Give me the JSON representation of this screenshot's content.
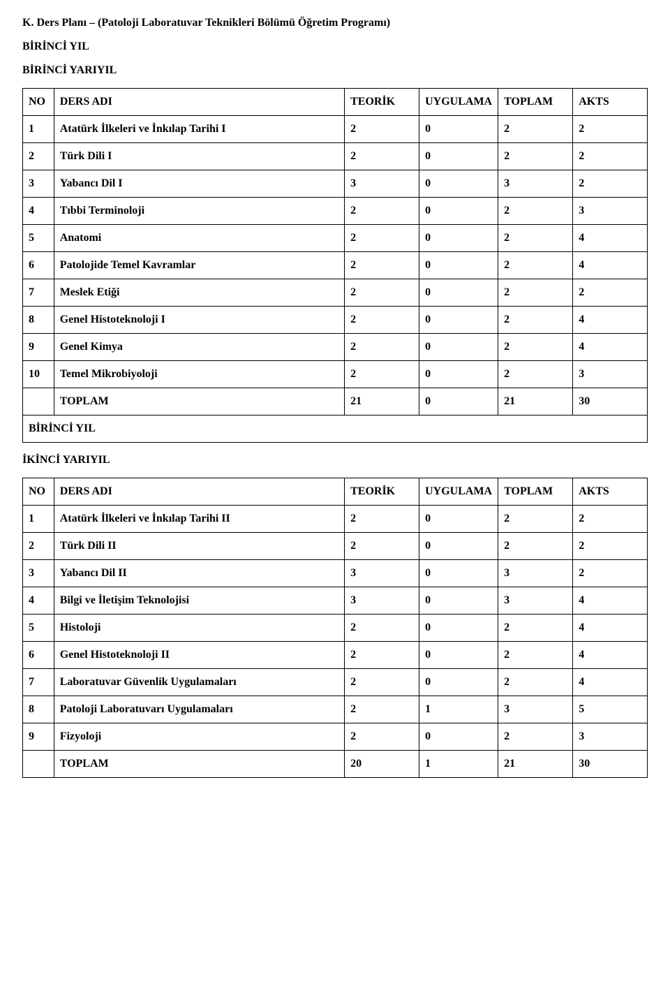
{
  "page_title": "K. Ders Planı – (Patoloji Laboratuvar Teknikleri Bölümü Öğretim Programı)",
  "year1_heading": "BİRİNCİ YIL",
  "sem1_heading": "BİRİNCİ YARIYIL",
  "sem2_heading": "İKİNCİ YARIYIL",
  "columns": {
    "no": "NO",
    "ders_adi": "DERS ADI",
    "teorik": "TEORİK",
    "uygulama": "UYGULAMA",
    "toplam": "TOPLAM",
    "akts": "AKTS"
  },
  "sem1": {
    "rows": [
      {
        "no": "1",
        "name": "Atatürk İlkeleri ve İnkılap Tarihi I",
        "teorik": "2",
        "uygulama": "0",
        "toplam": "2",
        "akts": "2"
      },
      {
        "no": "2",
        "name": "Türk Dili I",
        "teorik": "2",
        "uygulama": "0",
        "toplam": "2",
        "akts": "2"
      },
      {
        "no": "3",
        "name": "Yabancı Dil I",
        "teorik": "3",
        "uygulama": "0",
        "toplam": "3",
        "akts": "2"
      },
      {
        "no": "4",
        "name": "Tıbbi Terminoloji",
        "teorik": "2",
        "uygulama": "0",
        "toplam": "2",
        "akts": "3"
      },
      {
        "no": "5",
        "name": "Anatomi",
        "teorik": "2",
        "uygulama": "0",
        "toplam": "2",
        "akts": "4"
      },
      {
        "no": "6",
        "name": "Patolojide Temel Kavramlar",
        "teorik": "2",
        "uygulama": "0",
        "toplam": "2",
        "akts": "4"
      },
      {
        "no": "7",
        "name": "Meslek Etiği",
        "teorik": "2",
        "uygulama": "0",
        "toplam": "2",
        "akts": "2"
      },
      {
        "no": "8",
        "name": "Genel Histoteknoloji I",
        "teorik": "2",
        "uygulama": "0",
        "toplam": "2",
        "akts": "4"
      },
      {
        "no": "9",
        "name": "Genel Kimya",
        "teorik": "2",
        "uygulama": "0",
        "toplam": "2",
        "akts": "4"
      },
      {
        "no": "10",
        "name": "Temel Mikrobiyoloji",
        "teorik": "2",
        "uygulama": "0",
        "toplam": "2",
        "akts": "3"
      }
    ],
    "total": {
      "label": "TOPLAM",
      "teorik": "21",
      "uygulama": "0",
      "toplam": "21",
      "akts": "30"
    },
    "after_label": "BİRİNCİ YIL"
  },
  "sem2": {
    "rows": [
      {
        "no": "1",
        "name": "Atatürk İlkeleri ve İnkılap Tarihi II",
        "teorik": "2",
        "uygulama": "0",
        "toplam": "2",
        "akts": "2"
      },
      {
        "no": "2",
        "name": "Türk Dili II",
        "teorik": "2",
        "uygulama": "0",
        "toplam": "2",
        "akts": "2"
      },
      {
        "no": "3",
        "name": "Yabancı Dil II",
        "teorik": "3",
        "uygulama": "0",
        "toplam": "3",
        "akts": "2"
      },
      {
        "no": "4",
        "name": "Bilgi ve İletişim Teknolojisi",
        "teorik": "3",
        "uygulama": "0",
        "toplam": "3",
        "akts": "4"
      },
      {
        "no": "5",
        "name": "Histoloji",
        "teorik": "2",
        "uygulama": "0",
        "toplam": "2",
        "akts": "4"
      },
      {
        "no": "6",
        "name": "Genel Histoteknoloji II",
        "teorik": "2",
        "uygulama": "0",
        "toplam": "2",
        "akts": "4"
      },
      {
        "no": "7",
        "name": "Laboratuvar Güvenlik Uygulamaları",
        "teorik": "2",
        "uygulama": "0",
        "toplam": "2",
        "akts": "4"
      },
      {
        "no": "8",
        "name": "Patoloji Laboratuvarı Uygulamaları",
        "teorik": "2",
        "uygulama": "1",
        "toplam": "3",
        "akts": "5"
      },
      {
        "no": "9",
        "name": "Fizyoloji",
        "teorik": "2",
        "uygulama": "0",
        "toplam": "2",
        "akts": "3"
      }
    ],
    "total": {
      "label": "TOPLAM",
      "teorik": "20",
      "uygulama": "1",
      "toplam": "21",
      "akts": "30"
    }
  }
}
